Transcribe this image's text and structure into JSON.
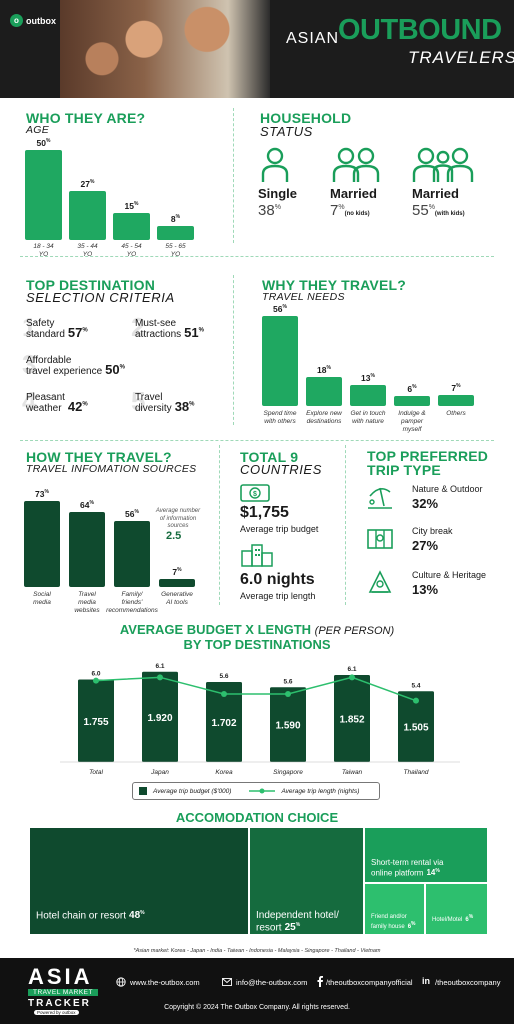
{
  "header": {
    "logo_text": "outbox",
    "title_asian": "ASIAN",
    "title_outbound": "OUTBOUND",
    "title_travelers": "TRAVELERS"
  },
  "who": {
    "title": "WHO THEY ARE?",
    "subtitle": "AGE",
    "bars": [
      {
        "value": "50",
        "label": "18 - 34\nYO"
      },
      {
        "value": "27",
        "label": "35 - 44\nYO"
      },
      {
        "value": "15",
        "label": "45 - 54\nYO"
      },
      {
        "value": "8",
        "label": "55 - 65\nYO"
      }
    ]
  },
  "household": {
    "title": "HOUSEHOLD",
    "subtitle": "STATUS",
    "items": [
      {
        "name": "Single",
        "value": "38",
        "note": ""
      },
      {
        "name": "Married",
        "value": "7",
        "note": "(no kids)"
      },
      {
        "name": "Married",
        "value": "55",
        "note": "(with kids)"
      }
    ]
  },
  "criteria": {
    "title": "TOP DESTINATION",
    "subtitle": "SELECTION CRITERIA",
    "items": [
      {
        "name": "Safety\nstandard",
        "value": "57"
      },
      {
        "name": "Must-see\nattractions",
        "value": "51"
      },
      {
        "name": "Affordable\ntravel experience",
        "value": "50"
      },
      {
        "name": "Pleasant\nweather",
        "value": "42"
      },
      {
        "name": "Travel\ndiversity",
        "value": "38"
      }
    ]
  },
  "why": {
    "title": "WHY THEY TRAVEL?",
    "subtitle": "TRAVEL NEEDS",
    "bars": [
      {
        "value": "56",
        "label": "Spend time\nwith others"
      },
      {
        "value": "18",
        "label": "Explore new\ndestinations"
      },
      {
        "value": "13",
        "label": "Get in touch\nwith nature"
      },
      {
        "value": "6",
        "label": "Indulge &\npamper\nmyself"
      },
      {
        "value": "7",
        "label": "Others"
      }
    ]
  },
  "how": {
    "title": "HOW THEY TRAVEL?",
    "subtitle": "TRAVEL INFOMATION SOURCES",
    "bars": [
      {
        "value": "73",
        "label": "Social\nmedia"
      },
      {
        "value": "64",
        "label": "Travel\nmedia\nwebsites"
      },
      {
        "value": "56",
        "label": "Family/\nfriends'\nrecommendations"
      },
      {
        "value": "7",
        "label": "Generative\nAI tools"
      }
    ],
    "avg_note": "Average number\nof information\nsources",
    "avg_value": "2.5"
  },
  "total": {
    "title": "TOTAL 9",
    "subtitle": "COUNTRIES",
    "budget": "$1,755",
    "budget_label": "Average trip budget",
    "nights": "6.0 nights",
    "nights_label": "Average trip length"
  },
  "preferred": {
    "title_1": "TOP PREFERRED",
    "title_2": "TRIP TYPE",
    "items": [
      {
        "name": "Nature & Outdoor",
        "value": "32%"
      },
      {
        "name": "City break",
        "value": "27%"
      },
      {
        "name": "Culture & Heritage",
        "value": "13%"
      }
    ]
  },
  "budget_section": {
    "title_main": "AVERAGE BUDGET X LENGTH",
    "title_per": "(PER PERSON)",
    "title_line2": "BY TOP DESTINATIONS",
    "legend_bar": "Average trip budget ($'000)",
    "legend_line": "Average trip length (nights)"
  },
  "chart_data": {
    "type": "bar",
    "categories": [
      "Total",
      "Japan",
      "Korea",
      "Singapore",
      "Taiwan",
      "Thailand"
    ],
    "series": [
      {
        "name": "Average trip budget ($'000)",
        "values": [
          1.755,
          1.92,
          1.702,
          1.59,
          1.852,
          1.505
        ],
        "labels": [
          "1.755",
          "1.920",
          "1.702",
          "1.590",
          "1.852",
          "1.505"
        ]
      },
      {
        "name": "Average trip length (nights)",
        "values": [
          6.0,
          6.1,
          5.6,
          5.6,
          6.1,
          5.4
        ],
        "labels": [
          "6.0",
          "6.1",
          "5.6",
          "5.6",
          "6.1",
          "5.4"
        ]
      }
    ],
    "title": "AVERAGE BUDGET X LENGTH (PER PERSON) BY TOP DESTINATIONS",
    "xlabel": "",
    "ylabel": "",
    "legend": "bottom",
    "colors": {
      "bar": "#0f4a2e",
      "line": "#2dbf6e"
    }
  },
  "accommodation": {
    "title": "ACCOMODATION CHOICE",
    "items": [
      {
        "name": "Hotel chain or resort",
        "value": "48",
        "color": "#0f4a2e"
      },
      {
        "name": "Independent hotel/\nresort",
        "value": "25",
        "color": "#156b3e"
      },
      {
        "name": "Short-term rental via\nonline platform",
        "value": "14",
        "color": "#1a9e5a"
      },
      {
        "name": "Friend and/or\nfamily house",
        "value": "6",
        "color": "#2dbf6e"
      },
      {
        "name": "Hotel/Motel",
        "value": "6",
        "color": "#2dbf6e"
      }
    ],
    "footnote": "*Asian market: Korea - Japan - India - Taiwan - Indonesia - Malaysia - Singapore - Thailand - Vietnam"
  },
  "footer": {
    "brand_1": "ASIA",
    "brand_2": "TRAVEL MARKET",
    "brand_3": "TRACKER",
    "brand_4": "Powered by outbox",
    "website": "www.the-outbox.com",
    "email": "info@the-outbox.com",
    "facebook": "/theoutboxcompanyofficial",
    "linkedin": "/theoutboxcompany",
    "copyright": "Copyright © 2024 The Outbox Company. All rights reserved."
  }
}
